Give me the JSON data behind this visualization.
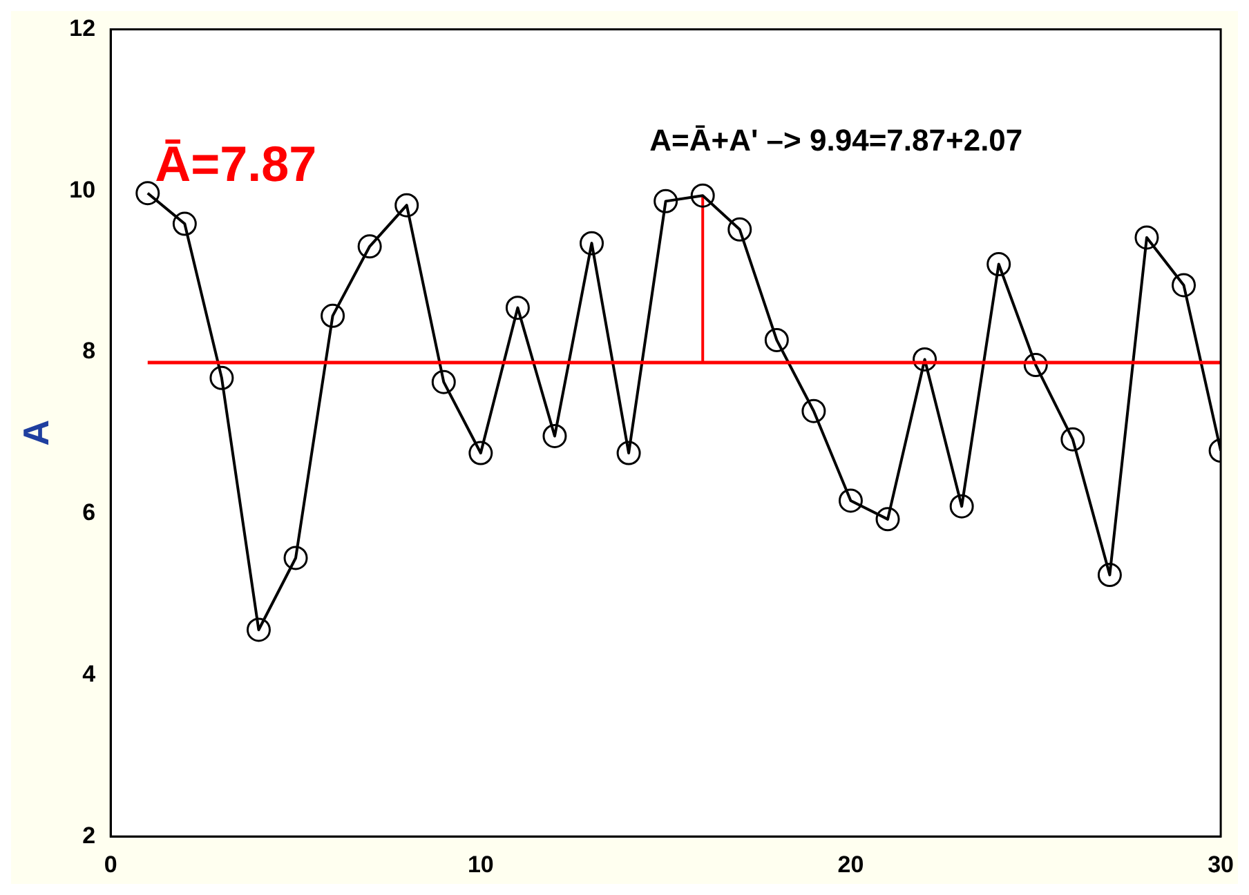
{
  "chart_data": {
    "type": "line",
    "ylabel": "A",
    "x": [
      1,
      2,
      3,
      4,
      5,
      6,
      7,
      8,
      9,
      10,
      11,
      12,
      13,
      14,
      15,
      16,
      17,
      18,
      19,
      20,
      21,
      22,
      23,
      24,
      25,
      26,
      27,
      28,
      29,
      30
    ],
    "series": [
      {
        "color": "#000000",
        "values": [
          9.97,
          9.59,
          7.68,
          4.56,
          5.45,
          8.45,
          9.31,
          9.82,
          7.63,
          6.75,
          8.55,
          6.96,
          9.35,
          6.75,
          9.87,
          9.94,
          9.52,
          8.15,
          7.27,
          6.16,
          5.93,
          7.91,
          6.09,
          9.09,
          7.84,
          6.92,
          5.24,
          9.42,
          8.83,
          6.78
        ]
      },
      {
        "type": "line",
        "color": "#ff0000",
        "marker": "none",
        "x": [
          16,
          16
        ],
        "values": [
          7.87,
          9.94
        ]
      }
    ],
    "ref_lines": [
      {
        "axis": "y",
        "value": 7.87,
        "color": "#ff0000"
      }
    ],
    "annotations": [
      "Ā=7.87",
      "A=Ā+A' –> 9.94=7.87+2.07"
    ],
    "xlim": [
      0,
      30
    ],
    "xticks": [
      0,
      10,
      20,
      30
    ],
    "ylim": [
      2,
      12
    ],
    "yticks": [
      2,
      4,
      6,
      8,
      10,
      12
    ],
    "marker": "circle",
    "line_style": "solid",
    "grid": false,
    "legend": false
  }
}
